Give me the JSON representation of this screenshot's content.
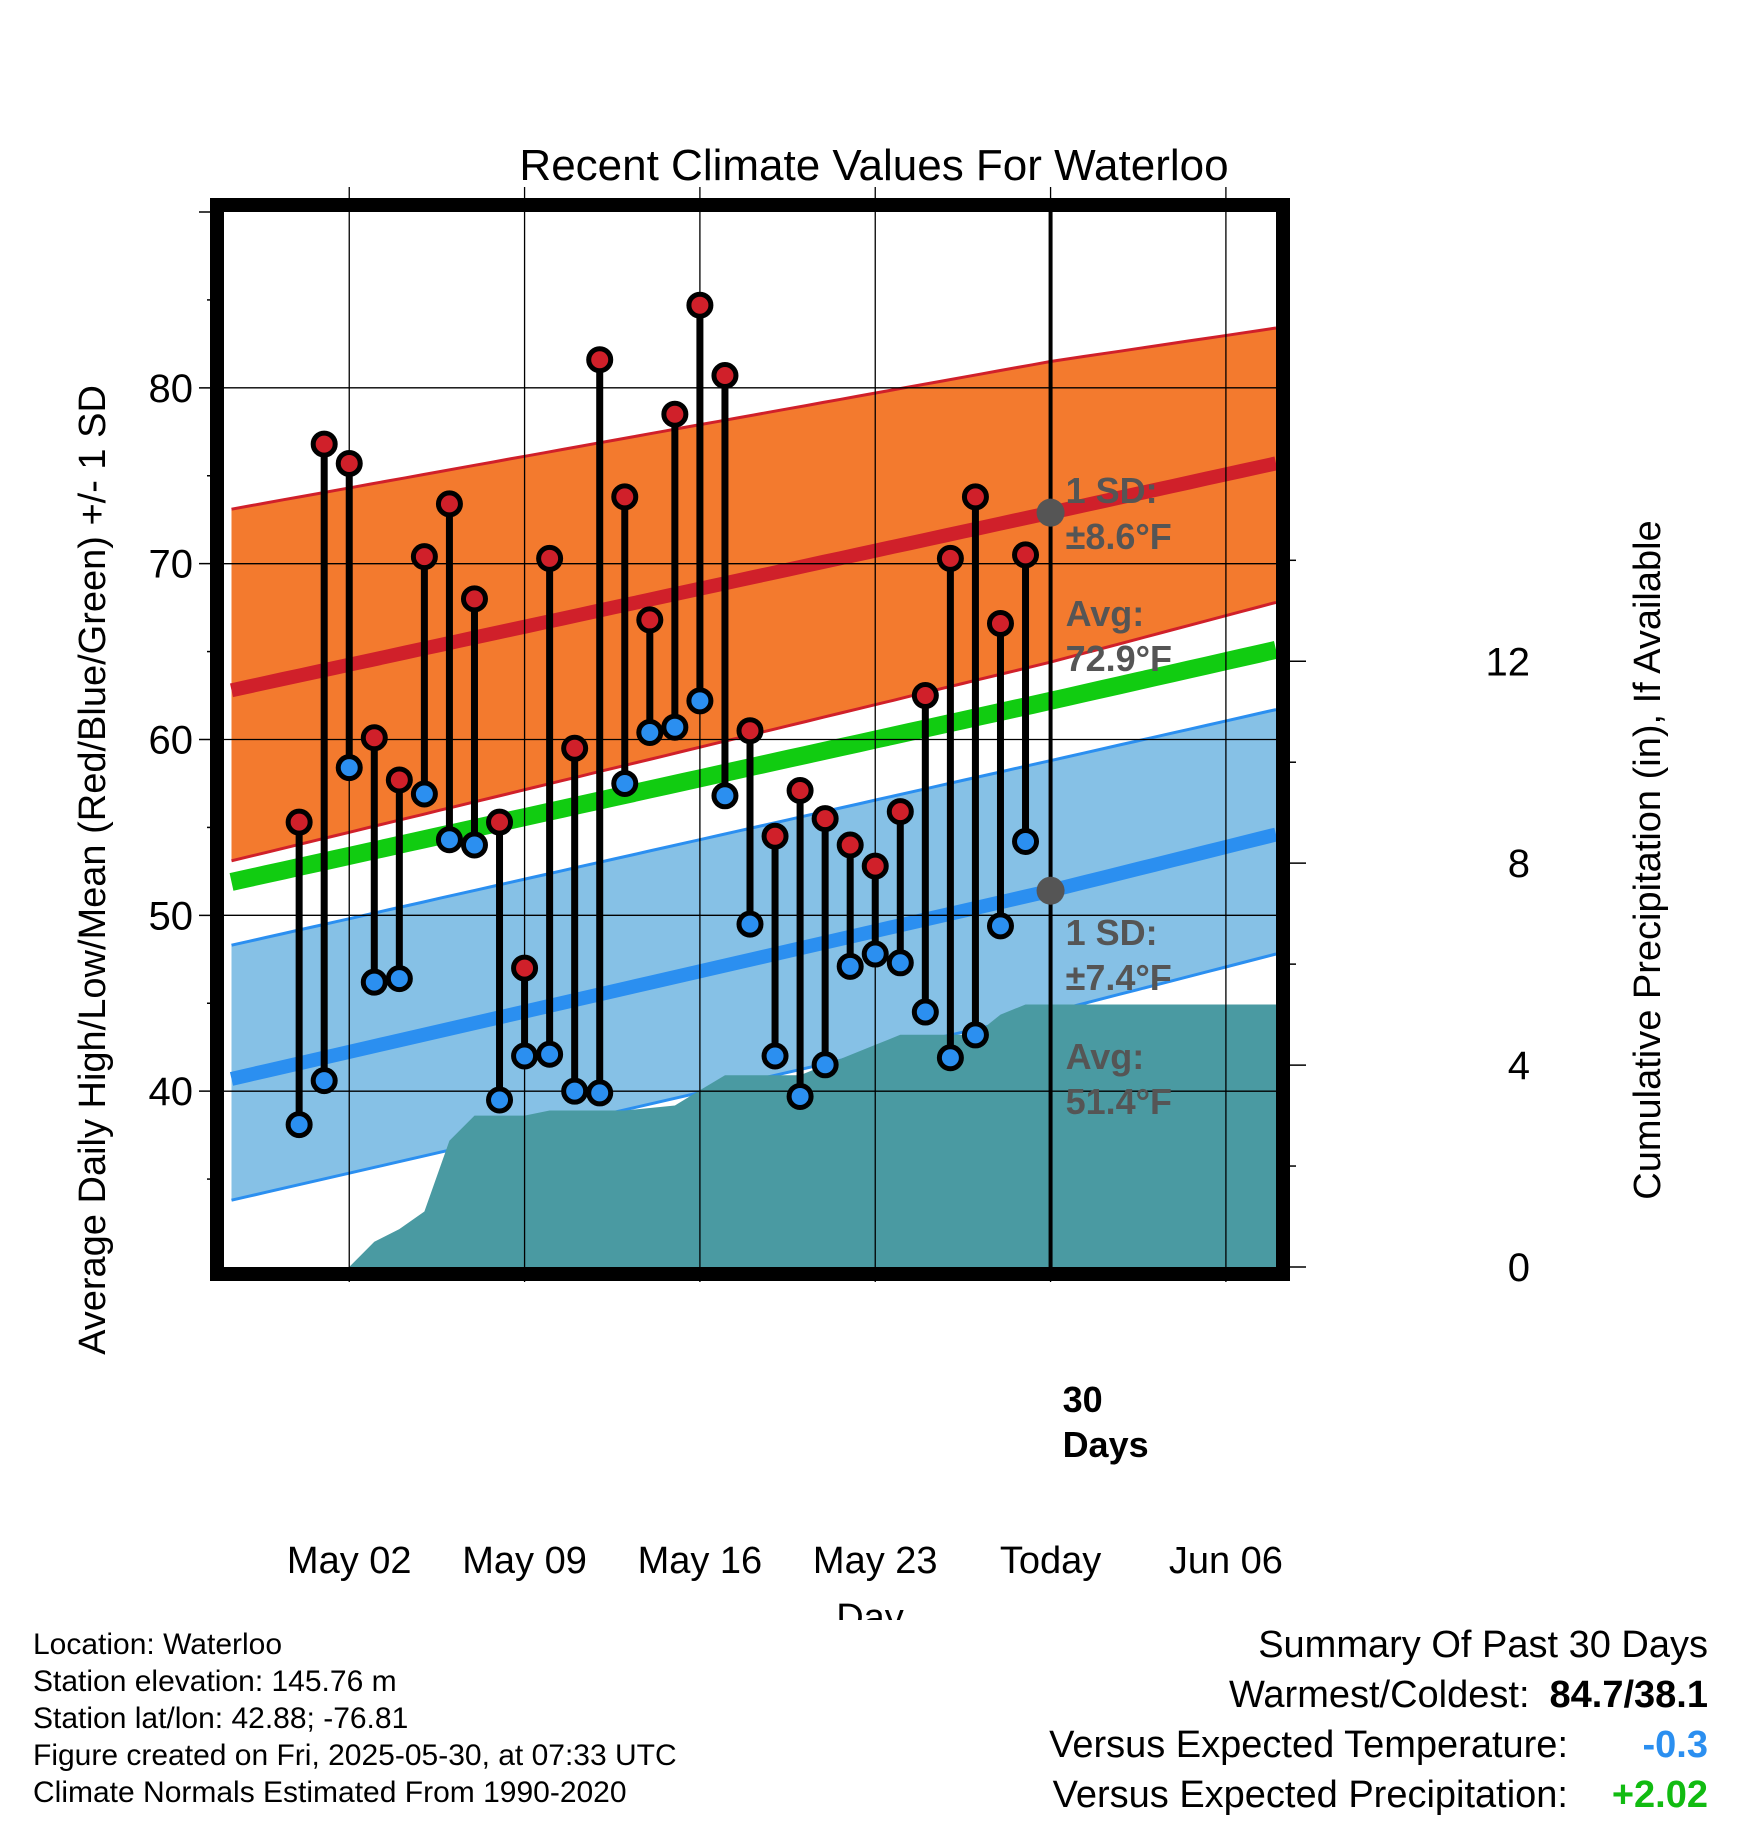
{
  "chart_data": {
    "type": "line",
    "title": "Recent Climate Values For Waterloo",
    "xlabel": "Day",
    "ylabel": "Average Daily High/Low/Mean (Red/Blue/Green) +/- 1 SD",
    "y2label": "Cumulative Precipitation (in), If Available",
    "x_range_days": [
      -3,
      39
    ],
    "ylim": [
      30,
      90
    ],
    "y2lim": [
      0,
      20.9
    ],
    "y_ticks": [
      40,
      50,
      60,
      70,
      80
    ],
    "y2_ticks": [
      0,
      4,
      8,
      12
    ],
    "x_ticks": [
      {
        "day": 2,
        "label": "May 02"
      },
      {
        "day": 9,
        "label": "May 09"
      },
      {
        "day": 16,
        "label": "May 16"
      },
      {
        "day": 23,
        "label": "May 23"
      },
      {
        "day": 30,
        "label": "Today"
      },
      {
        "day": 37,
        "label": "Jun 06"
      }
    ],
    "today_day": 30,
    "today_label_line1": "30",
    "today_label_line2": "Days",
    "normals": {
      "high_avg": [
        [
          -2.7,
          62.8
        ],
        [
          30,
          72.9
        ],
        [
          39,
          75.7
        ]
      ],
      "high_band_upper": [
        [
          -2.7,
          73.1
        ],
        [
          30,
          81.5
        ],
        [
          39,
          83.4
        ]
      ],
      "high_band_lower": [
        [
          -2.7,
          53.1
        ],
        [
          30,
          64.4
        ],
        [
          39,
          67.8
        ]
      ],
      "mean": [
        [
          -2.7,
          51.9
        ],
        [
          30,
          62.2
        ],
        [
          39,
          65.1
        ]
      ],
      "low_avg": [
        [
          -2.7,
          40.7
        ],
        [
          30,
          51.4
        ],
        [
          39,
          54.6
        ]
      ],
      "low_band_upper": [
        [
          -2.7,
          48.3
        ],
        [
          30,
          58.8
        ],
        [
          39,
          61.7
        ]
      ],
      "low_band_lower": [
        [
          -2.7,
          33.8
        ],
        [
          30,
          44.5
        ],
        [
          39,
          47.8
        ]
      ]
    },
    "high_sd_label_line1": "1 SD:",
    "high_sd_label_line2": "±8.6°F",
    "high_avg_label_line1": "Avg:",
    "high_avg_label_line2": "72.9°F",
    "low_sd_label_line1": "1 SD:",
    "low_sd_label_line2": "±7.4°F",
    "low_avg_label_line1": "Avg:",
    "low_avg_label_line2": "51.4°F",
    "high_avg_today": 72.9,
    "low_avg_today": 51.4,
    "observations": [
      {
        "day": 0,
        "high": 55.3,
        "low": 38.1
      },
      {
        "day": 1,
        "high": 76.8,
        "low": 40.6
      },
      {
        "day": 2,
        "high": 75.7,
        "low": 58.4
      },
      {
        "day": 3,
        "high": 60.1,
        "low": 46.2
      },
      {
        "day": 4,
        "high": 57.7,
        "low": 46.4
      },
      {
        "day": 5,
        "high": 70.4,
        "low": 56.9
      },
      {
        "day": 6,
        "high": 73.4,
        "low": 54.3
      },
      {
        "day": 7,
        "high": 68.0,
        "low": 54.0
      },
      {
        "day": 8,
        "high": 55.3,
        "low": 39.5
      },
      {
        "day": 9,
        "high": 47.0,
        "low": 42.0
      },
      {
        "day": 10,
        "high": 70.3,
        "low": 42.1
      },
      {
        "day": 11,
        "high": 59.5,
        "low": 40.0
      },
      {
        "day": 12,
        "high": 81.6,
        "low": 39.9
      },
      {
        "day": 13,
        "high": 73.8,
        "low": 57.5
      },
      {
        "day": 14,
        "high": 66.8,
        "low": 60.4
      },
      {
        "day": 15,
        "high": 78.5,
        "low": 60.7
      },
      {
        "day": 16,
        "high": 84.7,
        "low": 62.2
      },
      {
        "day": 17,
        "high": 80.7,
        "low": 56.8
      },
      {
        "day": 18,
        "high": 60.5,
        "low": 49.5
      },
      {
        "day": 19,
        "high": 54.5,
        "low": 42.0
      },
      {
        "day": 20,
        "high": 57.1,
        "low": 39.7
      },
      {
        "day": 21,
        "high": 55.5,
        "low": 41.5
      },
      {
        "day": 22,
        "high": 54.0,
        "low": 47.1
      },
      {
        "day": 23,
        "high": 52.8,
        "low": 47.8
      },
      {
        "day": 24,
        "high": 55.9,
        "low": 47.3
      },
      {
        "day": 25,
        "high": 62.5,
        "low": 44.5
      },
      {
        "day": 26,
        "high": 70.3,
        "low": 41.9
      },
      {
        "day": 27,
        "high": 73.8,
        "low": 43.2
      },
      {
        "day": 28,
        "high": 66.6,
        "low": 49.4
      },
      {
        "day": 29,
        "high": 70.5,
        "low": 54.2
      }
    ],
    "cumulative_precip": [
      [
        2,
        0.0
      ],
      [
        3,
        0.5
      ],
      [
        4,
        0.75
      ],
      [
        5,
        1.1
      ],
      [
        6,
        2.5
      ],
      [
        7,
        3.0
      ],
      [
        9,
        3.0
      ],
      [
        10,
        3.1
      ],
      [
        13,
        3.1
      ],
      [
        15,
        3.2
      ],
      [
        16,
        3.5
      ],
      [
        17,
        3.8
      ],
      [
        20,
        3.8
      ],
      [
        21,
        4.0
      ],
      [
        22,
        4.2
      ],
      [
        23,
        4.4
      ],
      [
        24,
        4.6
      ],
      [
        27,
        4.6
      ],
      [
        28,
        5.0
      ],
      [
        29,
        5.2
      ],
      [
        39,
        5.2
      ]
    ]
  },
  "footer_info": {
    "location": "Location: Waterloo",
    "elevation": "Station elevation: 145.76 m",
    "latlon": "Station lat/lon: 42.88; -76.81",
    "created": "Figure created on Fri, 2025-05-30, at 07:33 UTC",
    "normals": "Climate Normals Estimated From 1990-2020"
  },
  "summary": {
    "heading": "Summary Of Past 30 Days",
    "warmest_label": "Warmest/Coldest:",
    "warmest_value": "84.7/38.1",
    "temp_label": "Versus Expected Temperature:",
    "temp_value": "-0.3",
    "precip_label": "Versus Expected Precipitation:",
    "precip_value": "+2.02"
  },
  "colors": {
    "high_band": "#f37a2e",
    "high_line": "#d0202a",
    "low_band": "#86c1e6",
    "low_line": "#2b8ff0",
    "mean_line": "#11cc11",
    "precip_fill": "#4a9aa2",
    "high_marker": "#d0202a",
    "low_marker": "#2b8ff0",
    "annotation": "#555555",
    "temp_value": "#2b8ff0",
    "precip_value": "#11bb11"
  }
}
